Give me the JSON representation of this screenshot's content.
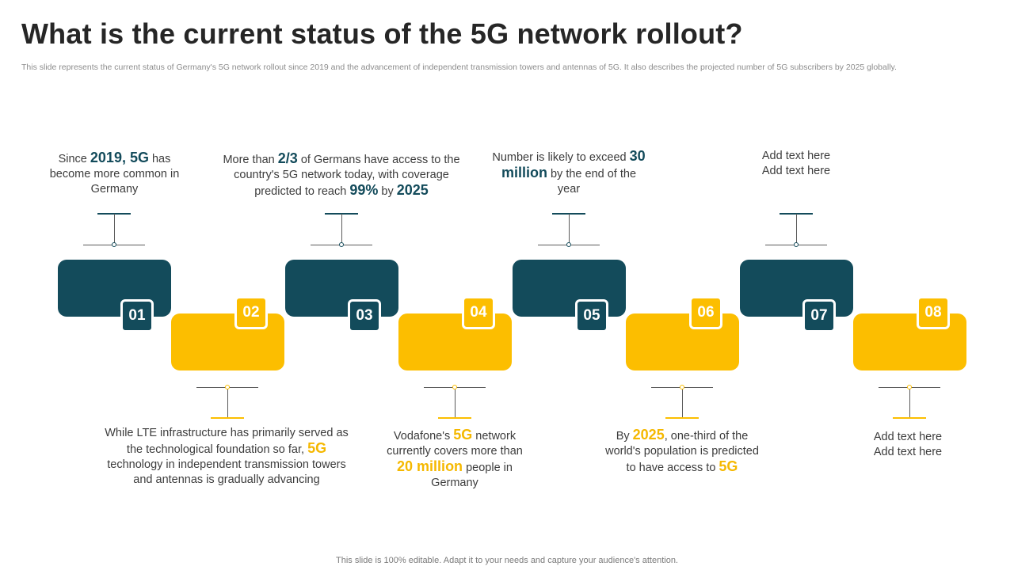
{
  "title": "What is the current status of the 5G network rollout?",
  "subtitle": "This slide represents the current status of Germany's 5G network rollout since 2019 and the advancement of independent transmission towers and antennas of 5G. It also describes the projected number of 5G subscribers by 2025 globally.",
  "footer": "This slide is 100% editable. Adapt it to your needs and capture your audience's attention.",
  "colors": {
    "teal": "#134b5b",
    "gold": "#fcbe00"
  },
  "steps": [
    {
      "number": "01",
      "color": "teal",
      "t1": "Since ",
      "h1": "2019, 5G",
      "t2": " has become more common in Germany"
    },
    {
      "number": "02",
      "color": "gold",
      "t1": "While LTE infrastructure has primarily served as the technological foundation  so far, ",
      "h1": "5G",
      "t2": " technology in independent transmission towers and antennas is gradually advancing"
    },
    {
      "number": "03",
      "color": "teal",
      "t1": "More than ",
      "h1": "2/3",
      "t2": " of Germans have access to the country's 5G network today, with coverage predicted to reach ",
      "h2": "99%",
      "t3": " by ",
      "h3": "2025"
    },
    {
      "number": "04",
      "color": "gold",
      "t1": "Vodafone's ",
      "h1": "5G",
      "t2": " network currently covers more than ",
      "h2": "20 million",
      "t3": " people in Germany"
    },
    {
      "number": "05",
      "color": "teal",
      "t1": "Number is likely to exceed ",
      "h1": "30 million",
      "t2": " by the end of the year"
    },
    {
      "number": "06",
      "color": "gold",
      "t1": "By ",
      "h1": "2025",
      "t2": ", one-third of the world's population is predicted to have access to ",
      "h2": "5G"
    },
    {
      "number": "07",
      "color": "teal",
      "line1": "Add text here",
      "line2": "Add text here"
    },
    {
      "number": "08",
      "color": "gold",
      "line1": "Add text here",
      "line2": "Add text here"
    }
  ]
}
